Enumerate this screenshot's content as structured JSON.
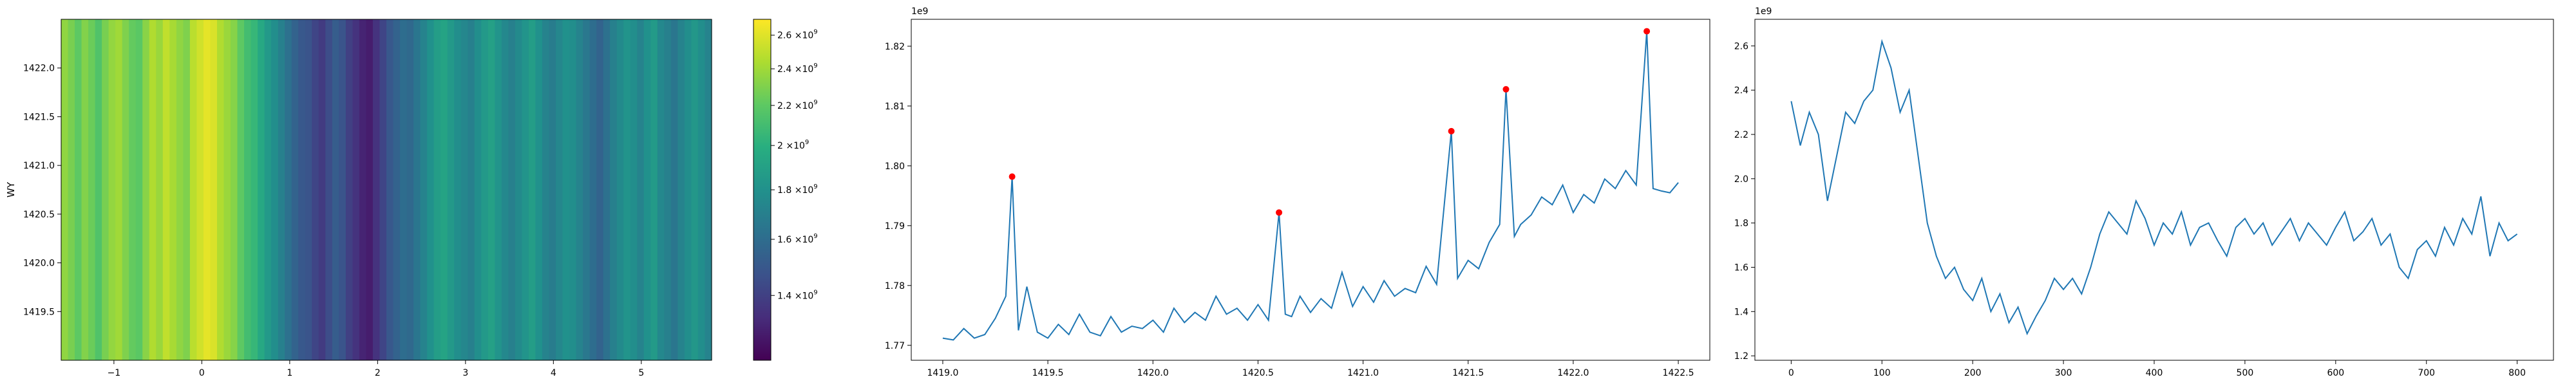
{
  "chart_data": [
    {
      "type": "heatmap",
      "orientation": "vertical-stripes",
      "xlabel": "",
      "ylabel": "WY",
      "xlim": [
        -1.6,
        5.8
      ],
      "ylim": [
        1419.0,
        1422.5
      ],
      "x_ticks": [
        -1,
        0,
        1,
        2,
        3,
        4,
        5
      ],
      "y_ticks": [
        1419.5,
        1420.0,
        1420.5,
        1421.0,
        1421.5,
        1422.0
      ],
      "colormap": "viridis",
      "colorbar": {
        "scale": "log",
        "range": [
          1200000000,
          2700000000
        ],
        "ticks": [
          1400000000,
          1600000000,
          1800000000,
          2000000000,
          2200000000,
          2400000000,
          2600000000
        ],
        "tick_labels": [
          {
            "mantissa": "1.4",
            "times": "×10",
            "exp": "9"
          },
          {
            "mantissa": "1.6",
            "times": "×10",
            "exp": "9"
          },
          {
            "mantissa": "1.8",
            "times": "×10",
            "exp": "9"
          },
          {
            "mantissa": "2",
            "times": "×10",
            "exp": "9"
          },
          {
            "mantissa": "2.2",
            "times": "×10",
            "exp": "9"
          },
          {
            "mantissa": "2.4",
            "times": "×10",
            "exp": "9"
          },
          {
            "mantissa": "2.6",
            "times": "×10",
            "exp": "9"
          }
        ]
      },
      "stripe_values": [
        2.35,
        2.28,
        2.2,
        2.31,
        2.24,
        2.15,
        2.28,
        2.36,
        2.4,
        2.3,
        2.22,
        2.19,
        2.33,
        2.45,
        2.38,
        2.5,
        2.42,
        2.35,
        2.3,
        2.48,
        2.55,
        2.62,
        2.58,
        2.45,
        2.38,
        2.32,
        2.2,
        2.1,
        2.05,
        1.95,
        1.85,
        1.78,
        1.7,
        1.62,
        1.55,
        1.5,
        1.48,
        1.42,
        1.38,
        1.45,
        1.52,
        1.48,
        1.4,
        1.35,
        1.3,
        1.28,
        1.35,
        1.42,
        1.5,
        1.55,
        1.6,
        1.58,
        1.65,
        1.72,
        1.8,
        1.88,
        1.92,
        1.85,
        1.78,
        1.74,
        1.7,
        1.78,
        1.85,
        1.9,
        1.82,
        1.75,
        1.7,
        1.76,
        1.82,
        1.88,
        1.8,
        1.72,
        1.68,
        1.74,
        1.8,
        1.78,
        1.72,
        1.66,
        1.6,
        1.55,
        1.62,
        1.7,
        1.76,
        1.82,
        1.78,
        1.72,
        1.8,
        1.86,
        1.75,
        1.7,
        1.65,
        1.72,
        1.78,
        1.84,
        1.78,
        1.72
      ]
    },
    {
      "type": "line",
      "offset_label": "1e9",
      "xlim": [
        1418.85,
        1422.65
      ],
      "ylim": [
        1.7675,
        1.8245
      ],
      "x_ticks": [
        "1419.0",
        "1419.5",
        "1420.0",
        "1420.5",
        "1421.0",
        "1421.5",
        "1422.0",
        "1422.5"
      ],
      "y_ticks": [
        "1.77",
        "1.78",
        "1.79",
        "1.80",
        "1.81",
        "1.82"
      ],
      "x": [
        1419.0,
        1419.05,
        1419.1,
        1419.15,
        1419.2,
        1419.25,
        1419.3,
        1419.33,
        1419.36,
        1419.4,
        1419.45,
        1419.5,
        1419.55,
        1419.6,
        1419.65,
        1419.7,
        1419.75,
        1419.8,
        1419.85,
        1419.9,
        1419.95,
        1420.0,
        1420.05,
        1420.1,
        1420.15,
        1420.2,
        1420.25,
        1420.3,
        1420.35,
        1420.4,
        1420.45,
        1420.5,
        1420.55,
        1420.6,
        1420.63,
        1420.66,
        1420.7,
        1420.75,
        1420.8,
        1420.85,
        1420.9,
        1420.95,
        1421.0,
        1421.05,
        1421.1,
        1421.15,
        1421.2,
        1421.25,
        1421.3,
        1421.35,
        1421.42,
        1421.45,
        1421.5,
        1421.55,
        1421.6,
        1421.65,
        1421.68,
        1421.72,
        1421.75,
        1421.8,
        1421.85,
        1421.9,
        1421.95,
        1422.0,
        1422.05,
        1422.1,
        1422.15,
        1422.2,
        1422.25,
        1422.3,
        1422.35,
        1422.38,
        1422.42,
        1422.46,
        1422.5
      ],
      "y": [
        1.7712,
        1.7709,
        1.7728,
        1.7712,
        1.7718,
        1.7745,
        1.7782,
        1.7982,
        1.7725,
        1.7798,
        1.7722,
        1.7712,
        1.7735,
        1.7718,
        1.7752,
        1.7722,
        1.7716,
        1.7748,
        1.7722,
        1.7732,
        1.7728,
        1.7742,
        1.7722,
        1.7762,
        1.7738,
        1.7755,
        1.7742,
        1.7782,
        1.7752,
        1.7762,
        1.7742,
        1.7768,
        1.7742,
        1.7922,
        1.7752,
        1.7748,
        1.7782,
        1.7755,
        1.7778,
        1.7762,
        1.7822,
        1.7765,
        1.7798,
        1.7772,
        1.7808,
        1.7782,
        1.7795,
        1.7788,
        1.7832,
        1.7802,
        1.8058,
        1.7812,
        1.7842,
        1.7828,
        1.7872,
        1.7902,
        1.8128,
        1.7882,
        1.7902,
        1.7918,
        1.7948,
        1.7935,
        1.7968,
        1.7922,
        1.7952,
        1.7938,
        1.7978,
        1.7962,
        1.7992,
        1.7968,
        1.8225,
        1.7962,
        1.7958,
        1.7955,
        1.7972
      ],
      "peaks": [
        {
          "x": 1419.33,
          "y": 1.7982
        },
        {
          "x": 1420.6,
          "y": 1.7922
        },
        {
          "x": 1421.42,
          "y": 1.8058
        },
        {
          "x": 1421.68,
          "y": 1.8128
        },
        {
          "x": 1422.35,
          "y": 1.8225
        }
      ],
      "line_color": "#1f77b4",
      "peak_color": "#ff0000"
    },
    {
      "type": "line",
      "offset_label": "1e9",
      "xlim": [
        -40,
        840
      ],
      "ylim": [
        1.18,
        2.72
      ],
      "x_ticks": [
        "0",
        "100",
        "200",
        "300",
        "400",
        "500",
        "600",
        "700",
        "800"
      ],
      "y_ticks": [
        "1.2",
        "1.4",
        "1.6",
        "1.8",
        "2.0",
        "2.2",
        "2.4",
        "2.6"
      ],
      "x": [
        0,
        10,
        20,
        30,
        40,
        50,
        60,
        70,
        80,
        90,
        100,
        110,
        120,
        130,
        140,
        150,
        160,
        170,
        180,
        190,
        200,
        210,
        220,
        230,
        240,
        250,
        260,
        270,
        280,
        290,
        300,
        310,
        320,
        330,
        340,
        350,
        360,
        370,
        380,
        390,
        400,
        410,
        420,
        430,
        440,
        450,
        460,
        470,
        480,
        490,
        500,
        510,
        520,
        530,
        540,
        550,
        560,
        570,
        580,
        590,
        600,
        610,
        620,
        630,
        640,
        650,
        660,
        670,
        680,
        690,
        700,
        710,
        720,
        730,
        740,
        750,
        760,
        770,
        780,
        790,
        800
      ],
      "y": [
        2.35,
        2.15,
        2.3,
        2.2,
        1.9,
        2.1,
        2.3,
        2.25,
        2.35,
        2.4,
        2.62,
        2.5,
        2.3,
        2.4,
        2.1,
        1.8,
        1.65,
        1.55,
        1.6,
        1.5,
        1.45,
        1.55,
        1.4,
        1.48,
        1.35,
        1.42,
        1.3,
        1.38,
        1.45,
        1.55,
        1.5,
        1.55,
        1.48,
        1.6,
        1.75,
        1.85,
        1.8,
        1.75,
        1.9,
        1.82,
        1.7,
        1.8,
        1.75,
        1.85,
        1.7,
        1.78,
        1.8,
        1.72,
        1.65,
        1.78,
        1.82,
        1.75,
        1.8,
        1.7,
        1.76,
        1.82,
        1.72,
        1.8,
        1.75,
        1.7,
        1.78,
        1.85,
        1.72,
        1.76,
        1.82,
        1.7,
        1.75,
        1.6,
        1.55,
        1.68,
        1.72,
        1.65,
        1.78,
        1.7,
        1.82,
        1.75,
        1.92,
        1.65,
        1.8,
        1.72,
        1.75
      ],
      "line_color": "#1f77b4"
    }
  ]
}
